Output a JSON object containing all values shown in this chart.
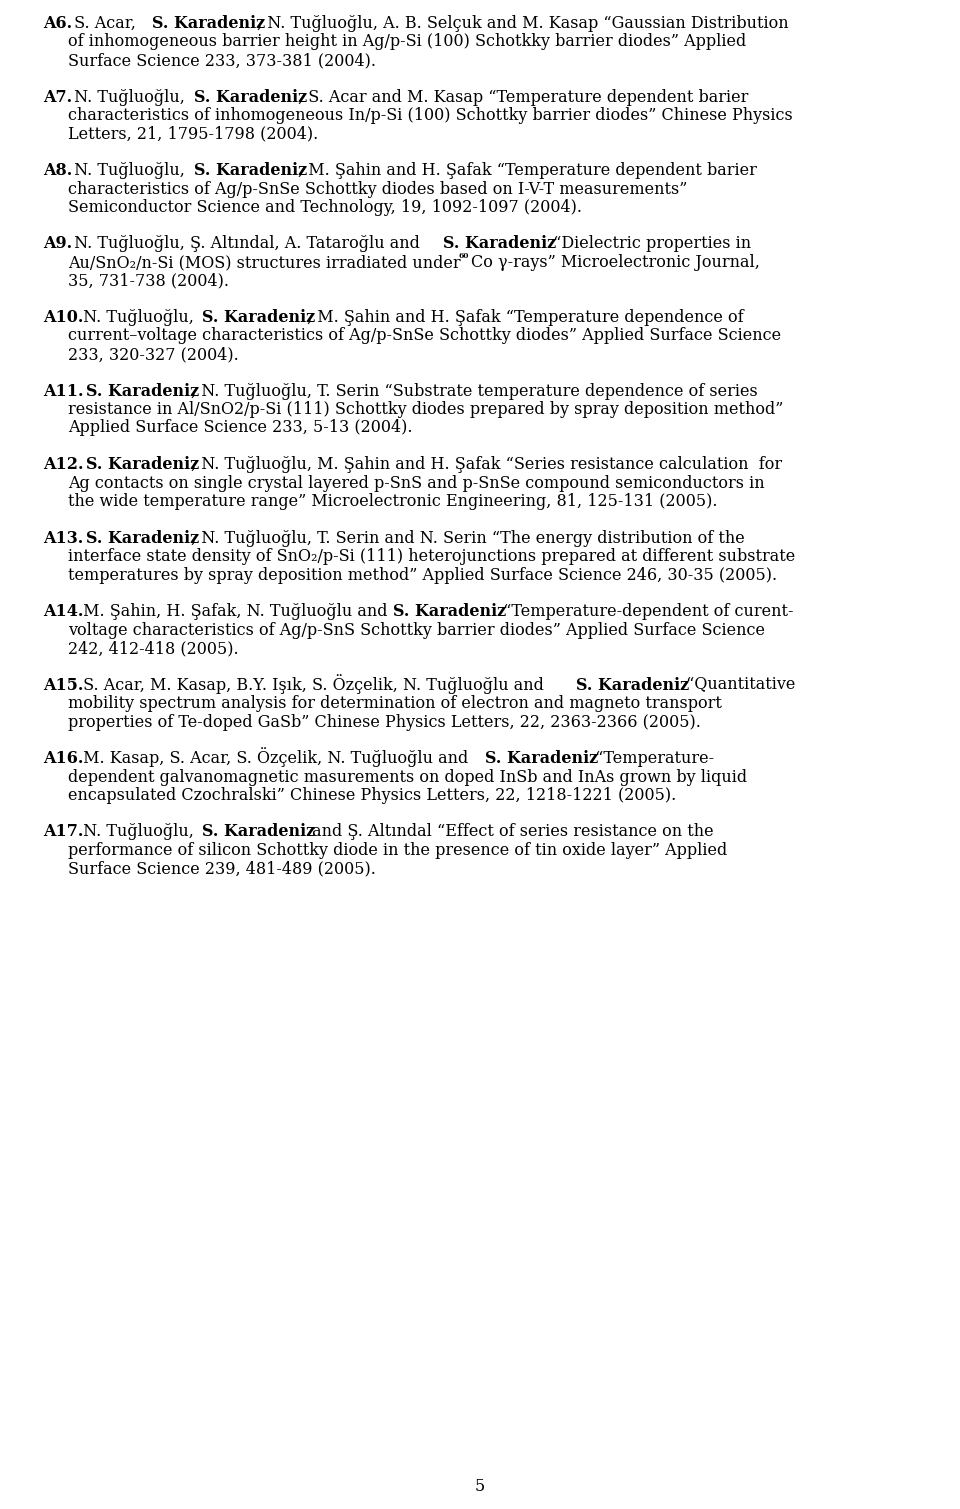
{
  "background_color": "#ffffff",
  "text_color": "#000000",
  "page_number": "5",
  "font_size": 11.5,
  "entries": [
    {
      "label": "A6.",
      "bold_part": "S. Karadeniz",
      "text": "A6. S. Acar, **S. Karadeniz**, N. Tuğluоğlu, A. B. Selçuk and M. Kasap “Gaussian Distribution of inhomogeneous barrier height in Ag/p-Si (100) Schotkky barrier diodes” Applied Surface Science 233, 373-381 (2004)."
    },
    {
      "label": "A7.",
      "text": "A7. N. Tuğluоğlu, **S. Karadeniz**, S. Acar and M. Kasap “Temperature dependent barier characteristics of inhomogeneous In/p-Si (100) Schottky barrier diodes” Chinese Physics Letters, 21, 1795-1798 (2004)."
    },
    {
      "label": "A8.",
      "text": "A8. N. Tuğluоğlu, **S. Karadeniz**, M. Şahin and H. Şafak “Temperature dependent barier characteristics of Ag/p-SnSe Schottky diodes based on I-V-T measurements” Semiconductor Science and Technology, 19, 1092-1097 (2004)."
    },
    {
      "label": "A9.",
      "text": "A9. N. Tuğluоğlu, Ş. Altındal, A. Taтaroğlu and **S. Karadeniz** “Dielectric properties in Au/SnO₂/n-Si (MOS) structures irradiated under ⁶⁰Co γ-rays” Microelectronic Journal, 35, 731-738 (2004)."
    },
    {
      "label": "A10.",
      "text": "A10. N. Tuğluоğlu, **S. Karadeniz**, M. Şahin and H. Şafak “Temperature dependence of current–voltage characteristics of Ag/p-SnSe Schottky diodes” Applied Surface Science 233, 320-327 (2004)."
    },
    {
      "label": "A11.",
      "text": "A11. **S. Karadeniz**, N. Tuğluоğlu, T. Serin “Substrate temperature dependence of series resistance in Al/SnO2/p-Si (111) Schottky diodes prepared by spray deposition method” Applied Surface Science 233, 5-13 (2004)."
    },
    {
      "label": "A12.",
      "text": "A12. **S. Karadeniz**, N. Tuğluоğlu, M. Şahin and H. Şafak “Series resistance calculation  for Ag contacts on single crystal layered p-SnS and p-SnSe compound semiconductors in the wide temperature range” Microelectronic Engineering, 81, 125-131 (2005)."
    },
    {
      "label": "A13.",
      "text": "A13. **S. Karadeniz**, N. Tuğluоğlu, T. Serin and N. Serin “The energy distribution of the interface state density of SnO₂/p-Si (111) heterojunctions prepared at different substrate temperatures by spray deposition method” Applied Surface Science 246, 30-35 (2005)."
    },
    {
      "label": "A14.",
      "text": "A14. M. Şahin, H. Şafak, N. Tuğluоğlu and **S. Karadeniz** “Temperature-dependent of curent-voltage characteristics of Ag/p-SnS Schottky barrier diodes” Applied Surface Science 242, 412-418 (2005)."
    },
    {
      "label": "A15.",
      "text": "A15. S. Acar, M. Kasap, B.Y. Işık, S. Özçelik, N. Tuğluоğlu and **S. Karadeniz** “Quantitative mobility spectrum analysis for determination of electron and magneto transport properties of Te-doped GaSb” Chinese Physics Letters, 22, 2363-2366 (2005)."
    },
    {
      "label": "A16.",
      "text": "A16. M. Kasap, S. Acar, S. Özçelik, N. Tuğluоğlu and **S. Karadeniz** “Temperature-dependent galvanomagnetic masurements on doped InSb and InAs grown by liquid encapsulated Czochralski” Chinese Physics Letters, 22, 1218-1221 (2005)."
    },
    {
      "label": "A17.",
      "text": "A17. N. Tuğluоğlu, **S. Karadeniz** and Ş. Altındal “Effect of series resistance on the performance of silicon Schottky diode in the presence of tin oxide layer” Applied Surface Science 239, 481-489 (2005)."
    }
  ]
}
